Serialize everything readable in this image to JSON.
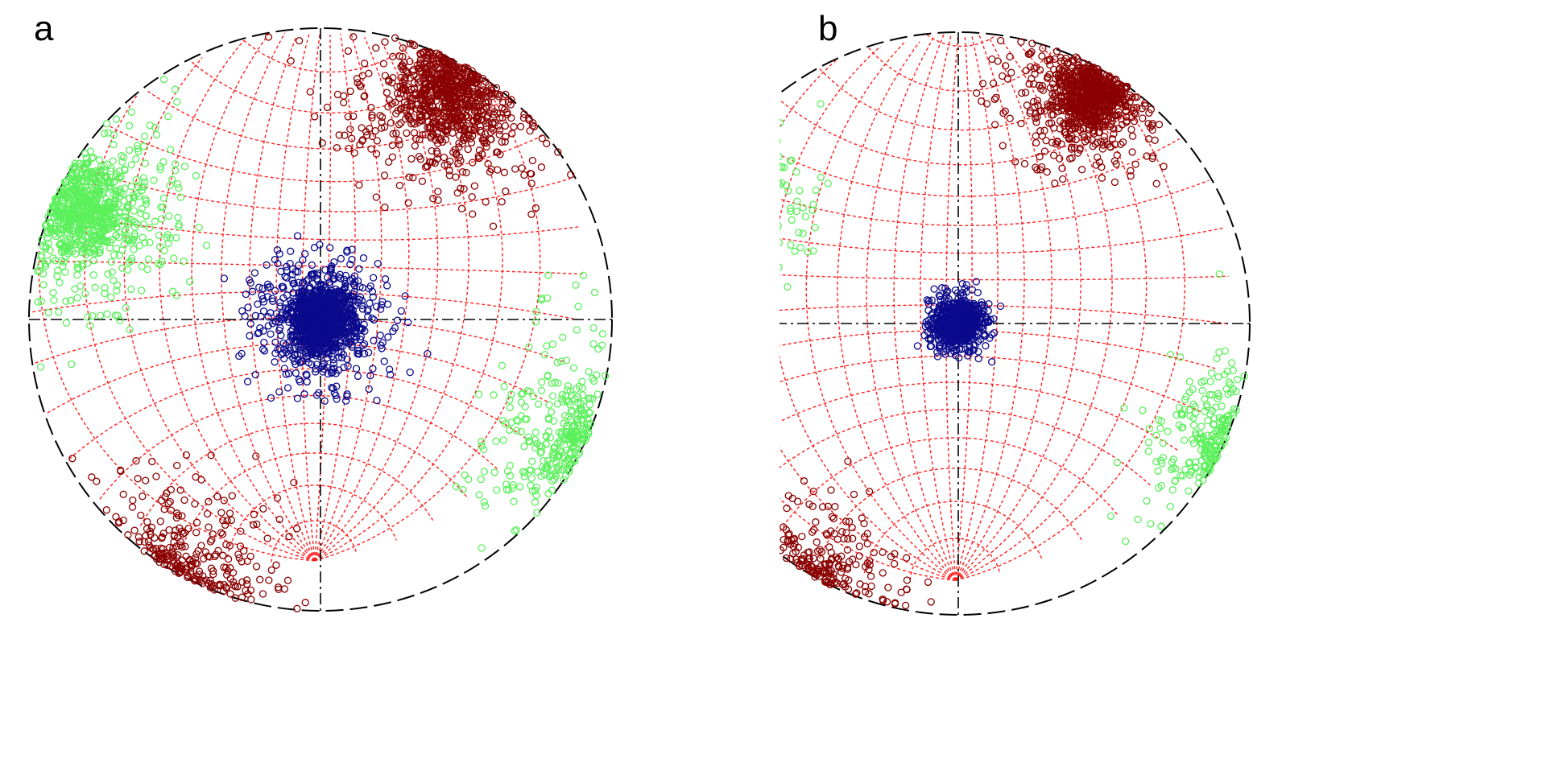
{
  "panels": [
    {
      "label": "a",
      "colors": {
        "grid": "#ff2020",
        "axes": "#000000",
        "primitive": "#000000",
        "cluster_1": "#8b0000",
        "cluster_2": "#5cf05c",
        "cluster_3": "#0a0a8c"
      },
      "net_type": "equal-angle stereographic projection with dashed great-circle and small-circle grid",
      "clusters": [
        {
          "color_key": "cluster_3",
          "pole_trend_deg": 0,
          "pole_plunge_deg": 90,
          "dispersion": "wide"
        },
        {
          "color_key": "cluster_1",
          "pole_trend_deg": 30,
          "pole_plunge_deg": 5,
          "dispersion": "wide"
        },
        {
          "color_key": "cluster_2",
          "pole_trend_deg": 295,
          "pole_plunge_deg": 5,
          "dispersion": "wide"
        }
      ]
    },
    {
      "label": "b",
      "colors": {
        "grid": "#ff2020",
        "axes": "#000000",
        "primitive": "#000000",
        "cluster_1": "#8b0000",
        "cluster_2": "#5cf05c",
        "cluster_3": "#0a0a8c"
      },
      "net_type": "equal-angle stereographic projection with dashed great-circle and small-circle grid",
      "clusters": [
        {
          "color_key": "cluster_3",
          "pole_trend_deg": 0,
          "pole_plunge_deg": 90,
          "dispersion": "tight"
        },
        {
          "color_key": "cluster_1",
          "pole_trend_deg": 30,
          "pole_plunge_deg": 5,
          "dispersion": "moderate"
        },
        {
          "color_key": "cluster_2",
          "pole_trend_deg": 295,
          "pole_plunge_deg": 5,
          "dispersion": "moderate"
        }
      ]
    }
  ]
}
